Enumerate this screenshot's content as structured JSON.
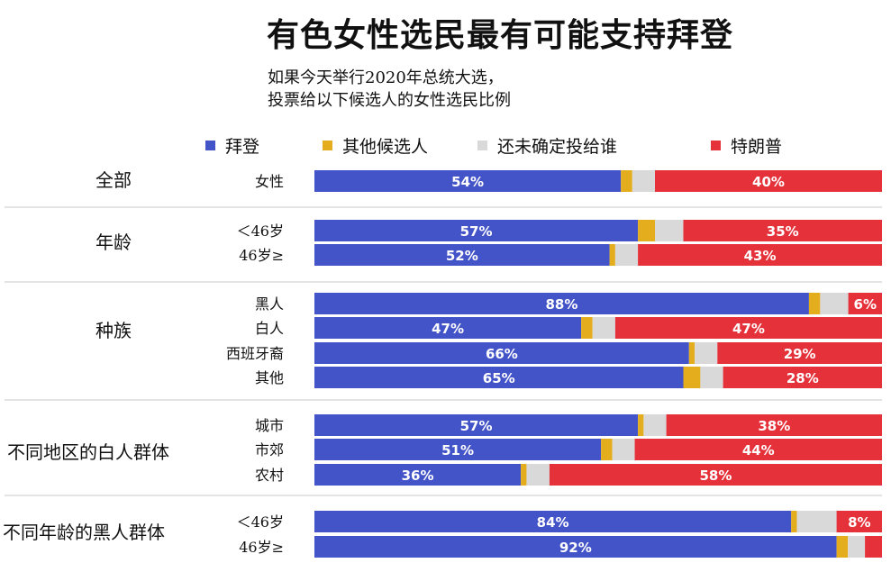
{
  "title": "有色女性选民最有可能支持拜登",
  "subtitle_line1": "如果今天举行2020年总统大选，",
  "subtitle_line2": "投票给以下候选人的女性选民比例",
  "legend": [
    {
      "name": "拜登",
      "color": "#4353c8"
    },
    {
      "name": "其他候选人",
      "color": "#e3ad1d"
    },
    {
      "name": "还未确定投给谁",
      "color": "#d9d9d9"
    },
    {
      "name": "特朗普",
      "color": "#e5313a"
    }
  ],
  "chart_data": {
    "type": "bar",
    "orientation": "horizontal",
    "stacked": true,
    "unit": "%",
    "series_names": [
      "拜登",
      "其他候选人",
      "还未确定投给谁",
      "特朗普"
    ],
    "xlim": [
      0,
      100
    ],
    "groups": [
      {
        "label": "全部",
        "rows": [
          {
            "label": "女性",
            "values": [
              54,
              2,
              4,
              40
            ],
            "labels": [
              "54%",
              "",
              "",
              "40%"
            ]
          }
        ]
      },
      {
        "label": "年龄",
        "rows": [
          {
            "label": "＜46岁",
            "values": [
              57,
              3,
              5,
              35
            ],
            "labels": [
              "57%",
              "",
              "",
              "35%"
            ]
          },
          {
            "label": "46岁≥",
            "values": [
              52,
              1,
              4,
              43
            ],
            "labels": [
              "52%",
              "",
              "",
              "43%"
            ]
          }
        ]
      },
      {
        "label": "种族",
        "rows": [
          {
            "label": "黑人",
            "values": [
              88,
              2,
              5,
              6
            ],
            "labels": [
              "88%",
              "",
              "",
              "6%"
            ]
          },
          {
            "label": "白人",
            "values": [
              47,
              2,
              4,
              47
            ],
            "labels": [
              "47%",
              "",
              "",
              "47%"
            ]
          },
          {
            "label": "西班牙裔",
            "values": [
              66,
              1,
              4,
              29
            ],
            "labels": [
              "66%",
              "",
              "",
              "29%"
            ]
          },
          {
            "label": "其他",
            "values": [
              65,
              3,
              4,
              28
            ],
            "labels": [
              "65%",
              "",
              "",
              "28%"
            ]
          }
        ]
      },
      {
        "label": "不同地区的白人群体",
        "rows": [
          {
            "label": "城市",
            "values": [
              57,
              1,
              4,
              38
            ],
            "labels": [
              "57%",
              "",
              "",
              "38%"
            ]
          },
          {
            "label": "市郊",
            "values": [
              51,
              2,
              4,
              44
            ],
            "labels": [
              "51%",
              "",
              "",
              "44%"
            ]
          },
          {
            "label": "农村",
            "values": [
              36,
              1,
              4,
              58
            ],
            "labels": [
              "36%",
              "",
              "",
              "58%"
            ]
          }
        ]
      },
      {
        "label": "不同年龄的黑人群体",
        "rows": [
          {
            "label": "＜46岁",
            "values": [
              84,
              1,
              7,
              8
            ],
            "labels": [
              "84%",
              "",
              "",
              "8%"
            ]
          },
          {
            "label": "46岁≥",
            "values": [
              92,
              2,
              3,
              3
            ],
            "labels": [
              "92%",
              "",
              "",
              ""
            ]
          }
        ]
      }
    ]
  }
}
